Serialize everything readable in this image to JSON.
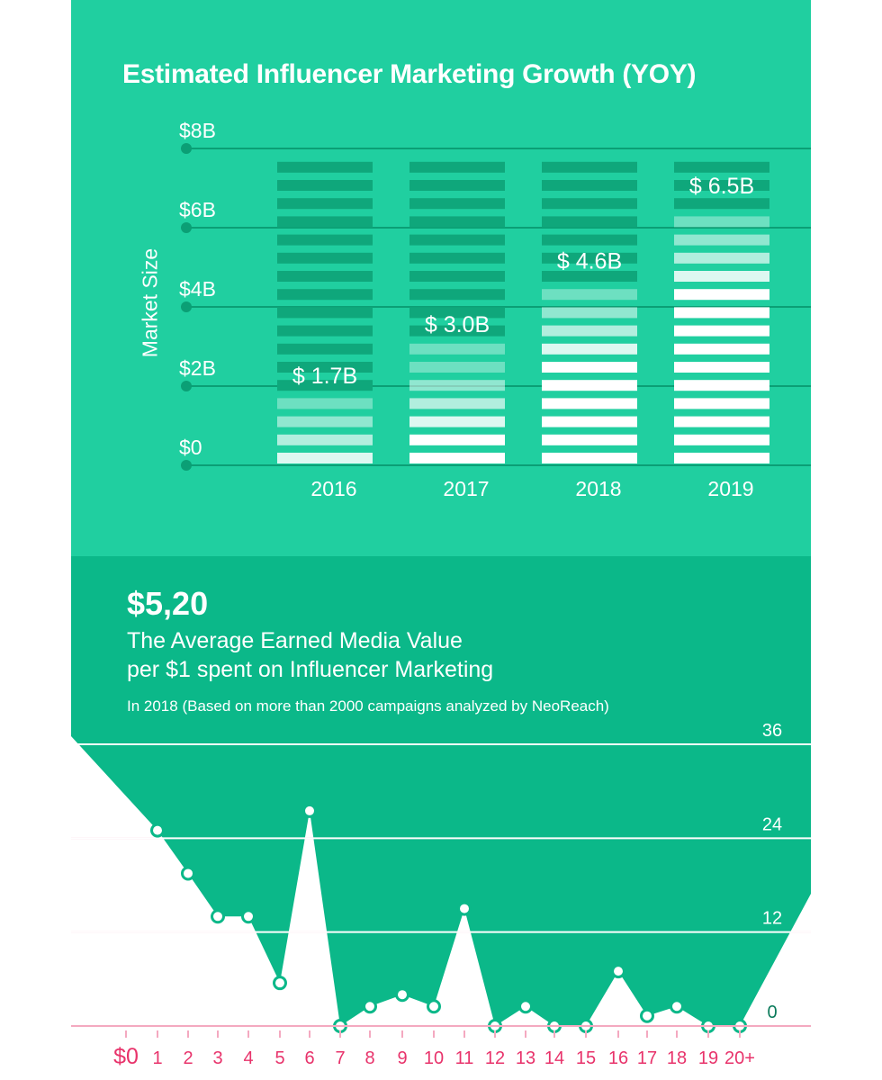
{
  "header": {
    "stat_value": "$5,20",
    "stat_line1": "The Average Earned Media Value",
    "stat_line2": "per $1 spent on Influencer Marketing",
    "stat_note": "In 2018 (Based on more than 2000 campaigns analyzed by NeoReach)"
  },
  "chart_data": [
    {
      "type": "bar",
      "title": "Estimated Influencer Marketing Growth (YOY)",
      "ylabel": "Market Size",
      "xlabel": "",
      "categories": [
        "2016",
        "2017",
        "2018",
        "2019"
      ],
      "values": [
        1.7,
        3.0,
        4.6,
        6.5
      ],
      "data_labels": [
        "$ 1.7B",
        "$ 3.0B",
        "$ 4.6B",
        "$ 6.5B"
      ],
      "ylim": [
        0,
        8
      ],
      "yticks": [
        0,
        2,
        4,
        6,
        8
      ],
      "ytick_labels": [
        "$0",
        "$2B",
        "$4B",
        "$6B",
        "$8B"
      ],
      "grid": true,
      "colors": {
        "background": "#20cfa0",
        "bar_fill": "#ffffff",
        "bar_empty": "#0fa77b",
        "grid": "#0b9f75"
      }
    },
    {
      "type": "area",
      "title": "",
      "xlabel": "",
      "ylabel": "",
      "x_labels": [
        "$0",
        "1",
        "2",
        "3",
        "4",
        "5",
        "6",
        "7",
        "8",
        "9",
        "10",
        "11",
        "12",
        "13",
        "14",
        "15",
        "16",
        "17",
        "18",
        "19",
        "20+"
      ],
      "x": [
        1,
        2,
        3,
        4,
        5,
        6,
        7,
        8,
        9,
        10,
        11,
        12,
        13,
        14,
        15,
        16,
        17,
        18,
        19,
        20
      ],
      "values": [
        25,
        19.5,
        14,
        14,
        5.5,
        27.5,
        0,
        2.5,
        4,
        2.5,
        15,
        0,
        2.5,
        0,
        0,
        7,
        1.3,
        2.5,
        0,
        0
      ],
      "ylim": [
        0,
        36
      ],
      "yticks": [
        0,
        12,
        24,
        36
      ],
      "grid": true,
      "colors": {
        "area": "#0bb889",
        "marker_fill": "#ffffff",
        "marker_stroke": "#0bb889",
        "grid_pink": "#f4a9c0",
        "axis_label_pink": "#e8336b",
        "value_label": "#0a7a5a"
      }
    }
  ]
}
